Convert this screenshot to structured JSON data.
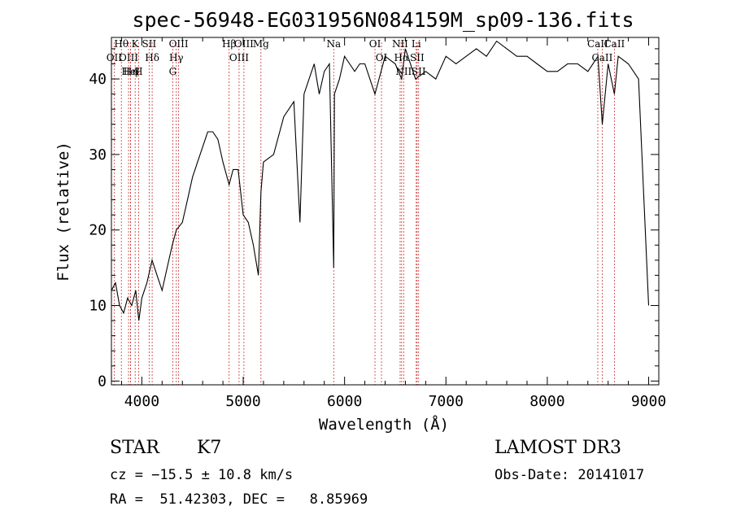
{
  "chart_data": {
    "type": "line",
    "title": "spec-56948-EG031956N084159M_sp09-136.fits",
    "xlabel": "Wavelength (Å)",
    "ylabel": "Flux (relative)",
    "xlim": [
      3700,
      9100
    ],
    "ylim": [
      -0.5,
      45.5
    ],
    "xticks": [
      4000,
      5000,
      6000,
      7000,
      8000,
      9000
    ],
    "yticks": [
      0,
      10,
      20,
      30,
      40
    ],
    "grid": false,
    "line_color": "#000000",
    "marker_color": "#cc3333",
    "x": [
      3700,
      3740,
      3780,
      3820,
      3860,
      3900,
      3940,
      3970,
      4000,
      4050,
      4101,
      4150,
      4200,
      4250,
      4300,
      4340,
      4400,
      4450,
      4500,
      4550,
      4600,
      4650,
      4700,
      4750,
      4800,
      4861,
      4900,
      4950,
      5000,
      5050,
      5100,
      5150,
      5175,
      5200,
      5300,
      5400,
      5500,
      5560,
      5600,
      5650,
      5700,
      5750,
      5800,
      5850,
      5893,
      5900,
      5950,
      6000,
      6050,
      6100,
      6150,
      6200,
      6250,
      6300,
      6400,
      6500,
      6563,
      6600,
      6700,
      6800,
      6900,
      7000,
      7100,
      7200,
      7300,
      7400,
      7500,
      7600,
      7700,
      7800,
      7900,
      8000,
      8100,
      8200,
      8300,
      8400,
      8500,
      8542,
      8600,
      8662,
      8700,
      8800,
      8900,
      9000
    ],
    "y": [
      12,
      13,
      10,
      9,
      11,
      10,
      12,
      8,
      11,
      13,
      16,
      14,
      12,
      15,
      18,
      20,
      21,
      24,
      27,
      29,
      31,
      33,
      33,
      32,
      29,
      26,
      28,
      28,
      22,
      21,
      18,
      14,
      25,
      29,
      30,
      35,
      37,
      21,
      38,
      40,
      42,
      38,
      41,
      42,
      15,
      38,
      40,
      43,
      42,
      41,
      42,
      42,
      40,
      38,
      43,
      42,
      40,
      44,
      40,
      41,
      40,
      43,
      42,
      43,
      44,
      43,
      45,
      44,
      43,
      43,
      42,
      41,
      41,
      42,
      42,
      41,
      43,
      34,
      42,
      38,
      43,
      42,
      40,
      10
    ],
    "spectral_lines": [
      {
        "name": "Hθ",
        "wavelength": 3798
      },
      {
        "name": "OII",
        "wavelength": 3727
      },
      {
        "name": "OIII",
        "wavelength": 3869
      },
      {
        "name": "HeI",
        "wavelength": 3889
      },
      {
        "name": "Hη",
        "wavelength": 3889
      },
      {
        "name": "K",
        "wavelength": 3934
      },
      {
        "name": "H",
        "wavelength": 3968
      },
      {
        "name": "SII",
        "wavelength": 4072
      },
      {
        "name": "Hδ",
        "wavelength": 4102
      },
      {
        "name": "OIII",
        "wavelength": 4363
      },
      {
        "name": "Hγ",
        "wavelength": 4340
      },
      {
        "name": "G",
        "wavelength": 4305
      },
      {
        "name": "Hβ",
        "wavelength": 4861
      },
      {
        "name": "OIII",
        "wavelength": 4959
      },
      {
        "name": "OIII",
        "wavelength": 5007
      },
      {
        "name": "Mg",
        "wavelength": 5175
      },
      {
        "name": "Na",
        "wavelength": 5893
      },
      {
        "name": "OI",
        "wavelength": 6300
      },
      {
        "name": "OI",
        "wavelength": 6364
      },
      {
        "name": "NII",
        "wavelength": 6548
      },
      {
        "name": "Hα",
        "wavelength": 6563
      },
      {
        "name": "NII",
        "wavelength": 6583
      },
      {
        "name": "Li",
        "wavelength": 6707
      },
      {
        "name": "SII",
        "wavelength": 6716
      },
      {
        "name": "SII",
        "wavelength": 6731
      },
      {
        "name": "CaII",
        "wavelength": 8498
      },
      {
        "name": "CaII",
        "wavelength": 8542
      },
      {
        "name": "CaII",
        "wavelength": 8662
      }
    ]
  },
  "info": {
    "class": "STAR",
    "subclass": "K7",
    "survey": "LAMOST DR3",
    "cz": "cz = −15.5 ± 10.8 km/s",
    "obs_date": "Obs-Date: 20141017",
    "coords": "RA =  51.42303, DEC =   8.85969"
  }
}
